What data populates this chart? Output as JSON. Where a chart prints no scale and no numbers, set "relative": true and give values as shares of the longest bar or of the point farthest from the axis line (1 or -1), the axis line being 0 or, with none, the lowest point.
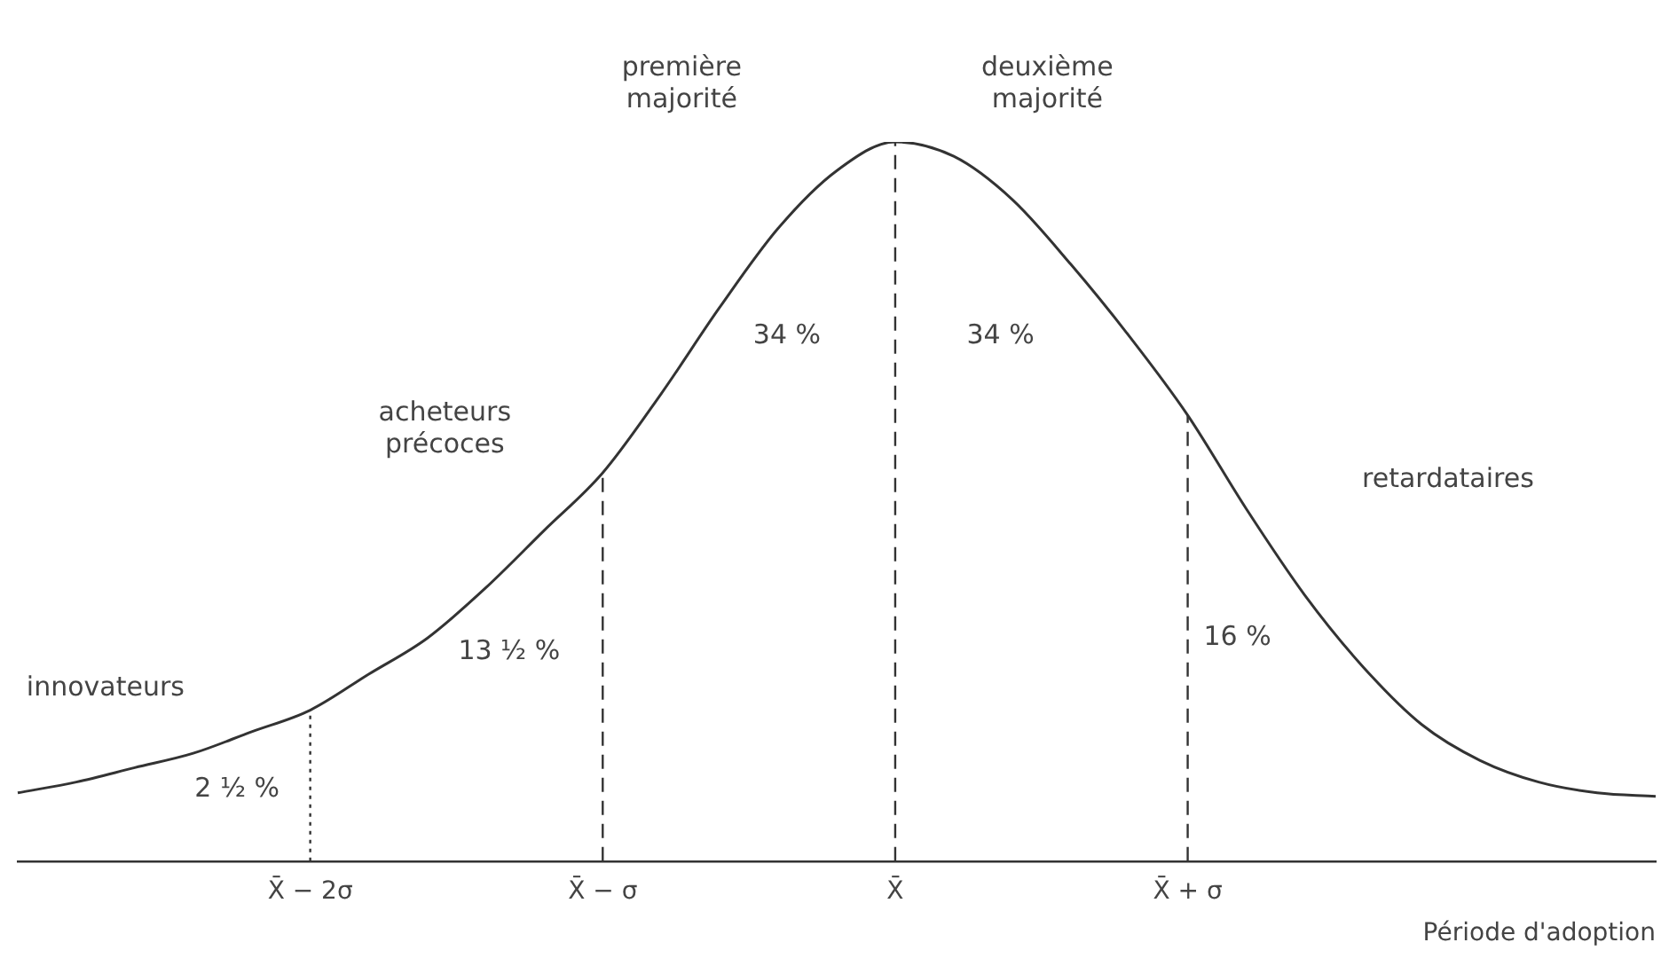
{
  "chart_data": {
    "type": "line",
    "relative": true,
    "color": "#333333",
    "marker": "none",
    "line_style": "solid",
    "grid": false,
    "legend": false,
    "xlabel": "Période d'adoption",
    "categories": [
      null,
      null,
      null,
      null,
      null,
      "X̄ − 2σ",
      null,
      null,
      null,
      null,
      "X̄ − σ",
      null,
      null,
      null,
      null,
      "X̄",
      null,
      null,
      null,
      null,
      "X̄ + σ",
      null,
      null,
      null,
      null,
      null,
      null,
      null,
      null
    ],
    "values": [
      0.095,
      0.11,
      0.13,
      0.15,
      0.18,
      0.21,
      0.26,
      0.31,
      0.38,
      0.46,
      0.54,
      0.65,
      0.77,
      0.88,
      0.96,
      1,
      0.98,
      0.92,
      0.83,
      0.73,
      0.62,
      0.49,
      0.37,
      0.27,
      0.19,
      0.14,
      0.11,
      0.095,
      0.09
    ],
    "ref_lines": [
      {
        "axis": "x",
        "value": "X̄ − 2σ",
        "line_style": "dotted"
      },
      {
        "axis": "x",
        "value": "X̄ − σ",
        "line_style": "dashed"
      },
      {
        "axis": "x",
        "value": "X̄",
        "line_style": "dashed"
      },
      {
        "axis": "x",
        "value": "X̄ + σ",
        "line_style": "dashed"
      }
    ],
    "annotations": [
      "première\nmajorité",
      "deuxième\nmajorité",
      "34 %",
      "34 %",
      "acheteurs\nprécoces",
      "13 ½ %",
      "innovateurs",
      "2 ½ %",
      "16 %",
      "retardataires"
    ]
  }
}
